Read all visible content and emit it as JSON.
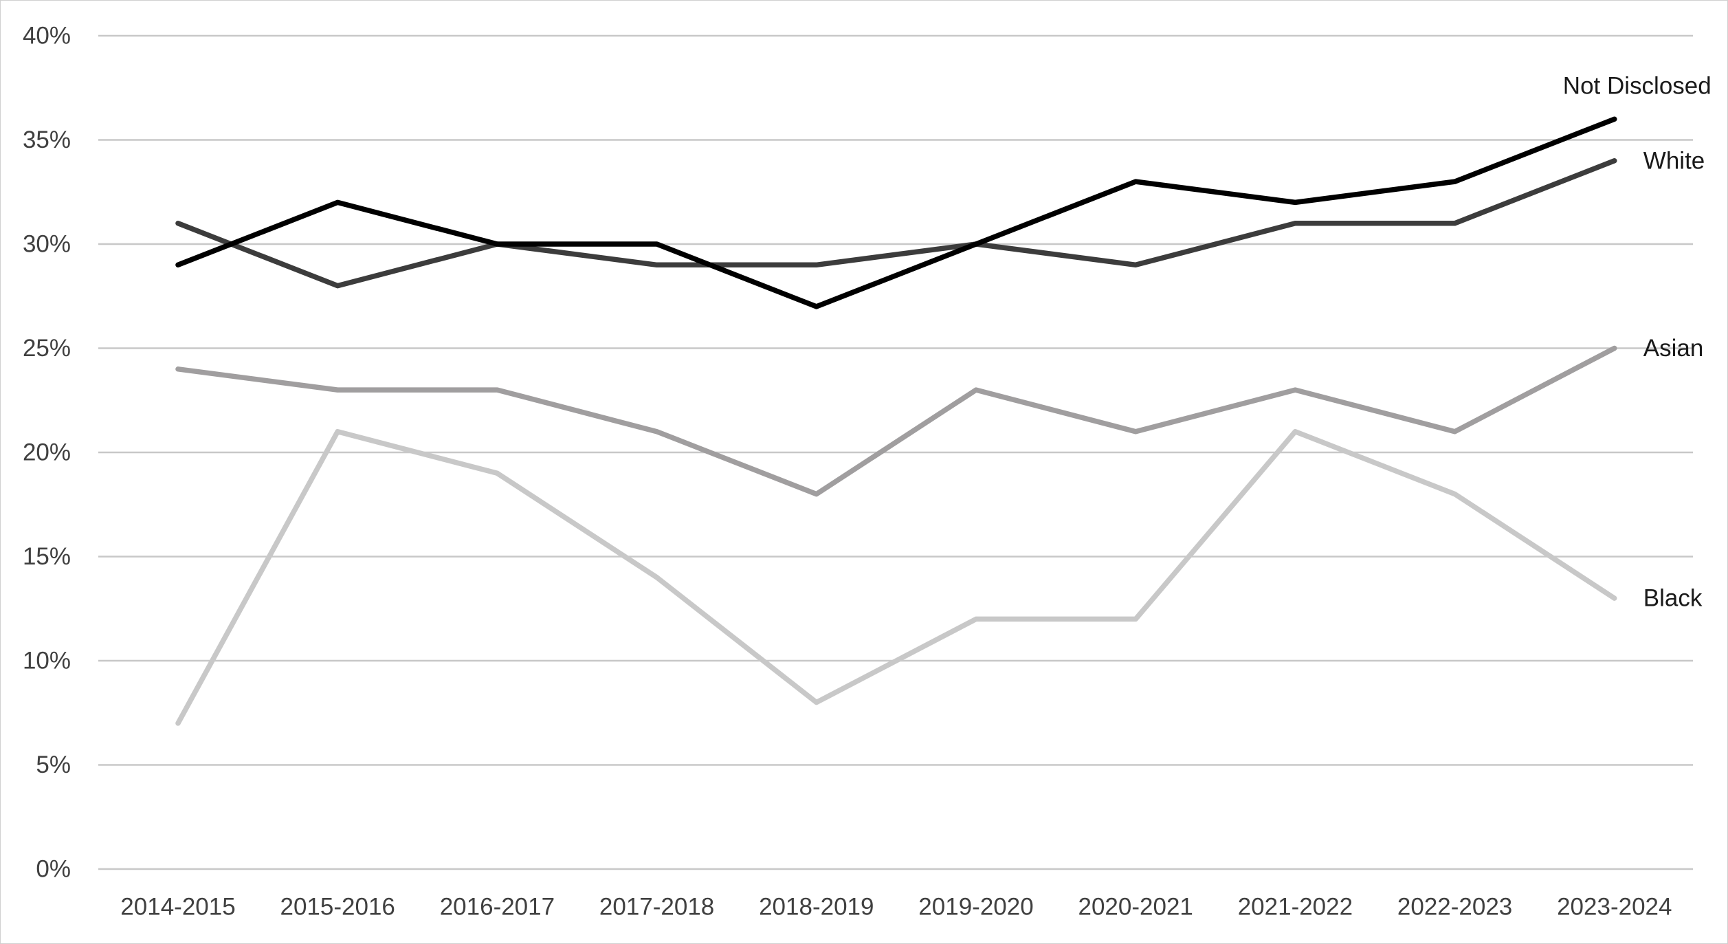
{
  "chart_data": {
    "type": "line",
    "categories": [
      "2014-2015",
      "2015-2016",
      "2016-2017",
      "2017-2018",
      "2018-2019",
      "2019-2020",
      "2020-2021",
      "2021-2022",
      "2022-2023",
      "2023-2024"
    ],
    "ylim": [
      0,
      40
    ],
    "y_ticks": [
      {
        "value": 0,
        "label": "0%"
      },
      {
        "value": 5,
        "label": "5%"
      },
      {
        "value": 10,
        "label": "10%"
      },
      {
        "value": 15,
        "label": "15%"
      },
      {
        "value": 20,
        "label": "20%"
      },
      {
        "value": 25,
        "label": "25%"
      },
      {
        "value": 30,
        "label": "30%"
      },
      {
        "value": 35,
        "label": "35%"
      },
      {
        "value": 40,
        "label": "40%"
      }
    ],
    "grid": true,
    "legend": "inline labels at line ends",
    "series": [
      {
        "name": "Black",
        "color": "#c8c8c8",
        "values": [
          7,
          21,
          19,
          14,
          8,
          12,
          12,
          21,
          18,
          13
        ]
      },
      {
        "name": "Asian",
        "color": "#a09e9f",
        "values": [
          24,
          23,
          23,
          21,
          18,
          23,
          21,
          23,
          21,
          25
        ]
      },
      {
        "name": "White",
        "color": "#3c3c3c",
        "values": [
          31,
          28,
          30,
          29,
          29,
          30,
          29,
          31,
          31,
          34
        ]
      },
      {
        "name": "Not Disclosed",
        "color": "#000000",
        "values": [
          29,
          32,
          30,
          30,
          27,
          30,
          33,
          32,
          33,
          36
        ]
      }
    ]
  }
}
